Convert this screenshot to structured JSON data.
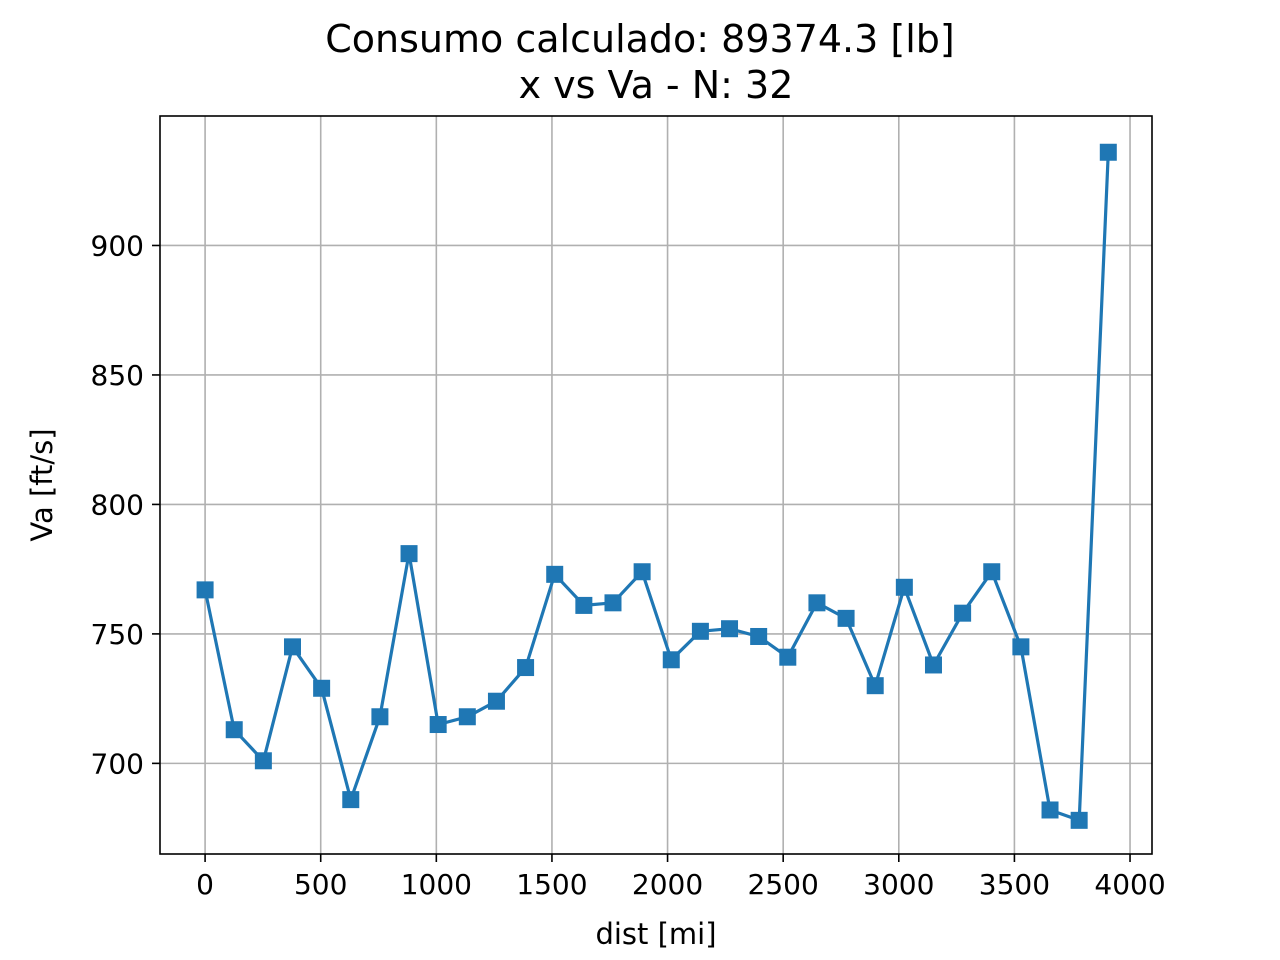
{
  "chart_data": {
    "type": "line",
    "title_line1": "Consumo calculado: 89374.3 [lb]",
    "title_line2": "x vs Va - N: 32",
    "xlabel": "dist [mi]",
    "ylabel": "Va [ft/s]",
    "xlim": [
      -195,
      4095
    ],
    "ylim": [
      665,
      950
    ],
    "xticks": [
      0,
      500,
      1000,
      1500,
      2000,
      2500,
      3000,
      3500,
      4000
    ],
    "yticks": [
      700,
      750,
      800,
      850,
      900
    ],
    "grid": true,
    "marker": "square",
    "line_color": "#1f77b4",
    "series": [
      {
        "x": [
          0,
          126,
          252,
          378,
          504,
          630,
          756,
          882,
          1008,
          1134,
          1260,
          1386,
          1512,
          1638,
          1764,
          1890,
          2016,
          2142,
          2268,
          2394,
          2520,
          2646,
          2772,
          2898,
          3024,
          3150,
          3276,
          3402,
          3528,
          3654,
          3780,
          3906
        ],
        "values": [
          767,
          713,
          701,
          745,
          729,
          686,
          718,
          781,
          715,
          718,
          724,
          737,
          773,
          761,
          762,
          774,
          740,
          751,
          752,
          749,
          741,
          762,
          756,
          730,
          768,
          738,
          758,
          774,
          745,
          682,
          678,
          936
        ]
      }
    ]
  }
}
